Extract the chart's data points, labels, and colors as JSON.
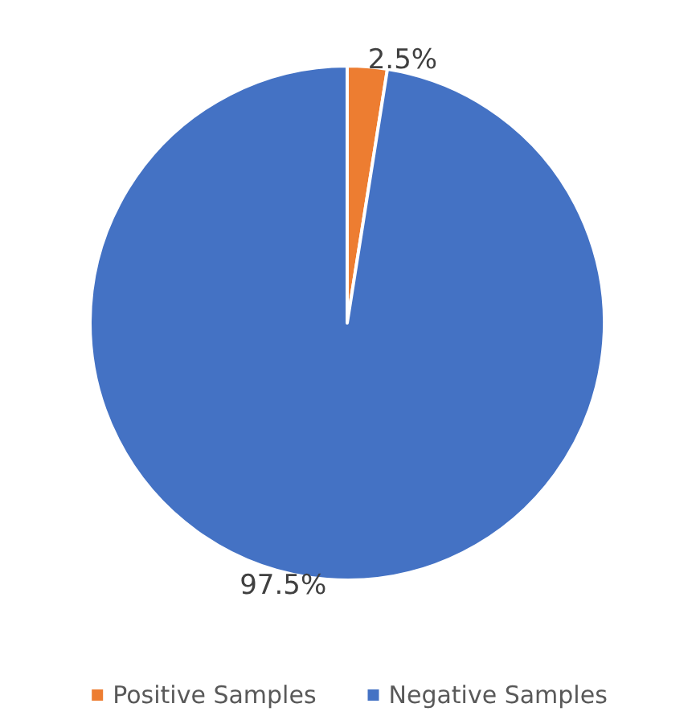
{
  "chart_data": {
    "type": "pie",
    "categories": [
      "Positive Samples",
      "Negative Samples"
    ],
    "values": [
      2.5,
      97.5
    ],
    "colors": [
      "#ed7d31",
      "#4472c4"
    ],
    "value_labels": [
      "2.5%",
      "97.5%"
    ],
    "legend": "bottom"
  }
}
